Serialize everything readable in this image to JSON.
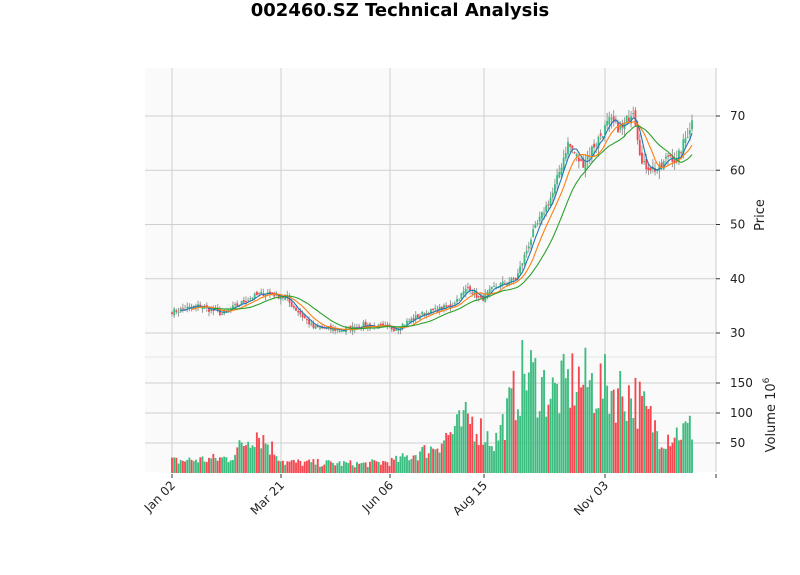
{
  "title": "002460.SZ Technical Analysis",
  "chart_data": {
    "type": "candlestick",
    "title": "002460.SZ Technical Analysis",
    "panels": [
      {
        "name": "price",
        "ylabel": "Price",
        "yticks": [
          30,
          40,
          50,
          60,
          70
        ],
        "ylim": [
          26.2,
          78.8
        ],
        "series": [
          {
            "name": "candles",
            "type": "ohlc",
            "up_color": "#3bbd7f",
            "down_color": "#f5474f"
          },
          {
            "name": "MA short",
            "type": "line",
            "color": "#1f77b4"
          },
          {
            "name": "MA mid",
            "type": "line",
            "color": "#ff7f0e"
          },
          {
            "name": "MA long",
            "type": "line",
            "color": "#2ca02c"
          }
        ],
        "close_anchors": [
          {
            "date": "Jan 02",
            "close": 34.0
          },
          {
            "date": "Jan 20",
            "close": 35.0
          },
          {
            "date": "Feb 05",
            "close": 33.5
          },
          {
            "date": "Feb 25",
            "close": 36.5
          },
          {
            "date": "Mar 08",
            "close": 37.5
          },
          {
            "date": "Mar 21",
            "close": 36.5
          },
          {
            "date": "Apr 10",
            "close": 31.0
          },
          {
            "date": "May 01",
            "close": 30.5
          },
          {
            "date": "May 15",
            "close": 31.5
          },
          {
            "date": "Jun 06",
            "close": 30.8
          },
          {
            "date": "Jun 25",
            "close": 33.5
          },
          {
            "date": "Jul 15",
            "close": 35.0
          },
          {
            "date": "Jul 28",
            "close": 38.5
          },
          {
            "date": "Aug 05",
            "close": 36.0
          },
          {
            "date": "Aug 15",
            "close": 38.5
          },
          {
            "date": "Aug 30",
            "close": 40.0
          },
          {
            "date": "Sep 10",
            "close": 48.0
          },
          {
            "date": "Sep 25",
            "close": 56.0
          },
          {
            "date": "Oct 05",
            "close": 65.0
          },
          {
            "date": "Oct 15",
            "close": 61.0
          },
          {
            "date": "Oct 28",
            "close": 66.5
          },
          {
            "date": "Nov 03",
            "close": 69.0
          },
          {
            "date": "Nov 12",
            "close": 67.5
          },
          {
            "date": "Nov 20",
            "close": 71.5
          },
          {
            "date": "Nov 26",
            "close": 61.0
          },
          {
            "date": "Dec 08",
            "close": 60.0
          },
          {
            "date": "Dec 15",
            "close": 63.0
          },
          {
            "date": "Dec 20",
            "close": 61.5
          },
          {
            "date": "Dec 31",
            "close": 69.0
          }
        ]
      },
      {
        "name": "volume",
        "ylabel": "Volume  10^6",
        "yticks": [
          50,
          100,
          150
        ],
        "ylim": [
          0,
          193
        ],
        "volume_anchors": [
          {
            "date": "Jan 02",
            "volume": 20
          },
          {
            "date": "Feb 10",
            "volume": 25
          },
          {
            "date": "Mar 01",
            "volume": 70
          },
          {
            "date": "Mar 21",
            "volume": 18
          },
          {
            "date": "May 15",
            "volume": 15
          },
          {
            "date": "Jun 06",
            "volume": 20
          },
          {
            "date": "Jul 01",
            "volume": 40
          },
          {
            "date": "Jul 28",
            "volume": 90
          },
          {
            "date": "Aug 15",
            "volume": 50
          },
          {
            "date": "Sep 05",
            "volume": 170
          },
          {
            "date": "Sep 25",
            "volume": 130
          },
          {
            "date": "Oct 10",
            "volume": 155
          },
          {
            "date": "Nov 03",
            "volume": 140
          },
          {
            "date": "Nov 20",
            "volume": 130
          },
          {
            "date": "Dec 10",
            "volume": 60
          },
          {
            "date": "Dec 31",
            "volume": 75
          }
        ]
      }
    ],
    "xticks": [
      "Jan 02",
      "Mar 21",
      "Jun 06",
      "Aug 15",
      "Nov 03"
    ],
    "xlabel": "",
    "grid": true,
    "legend": null
  }
}
